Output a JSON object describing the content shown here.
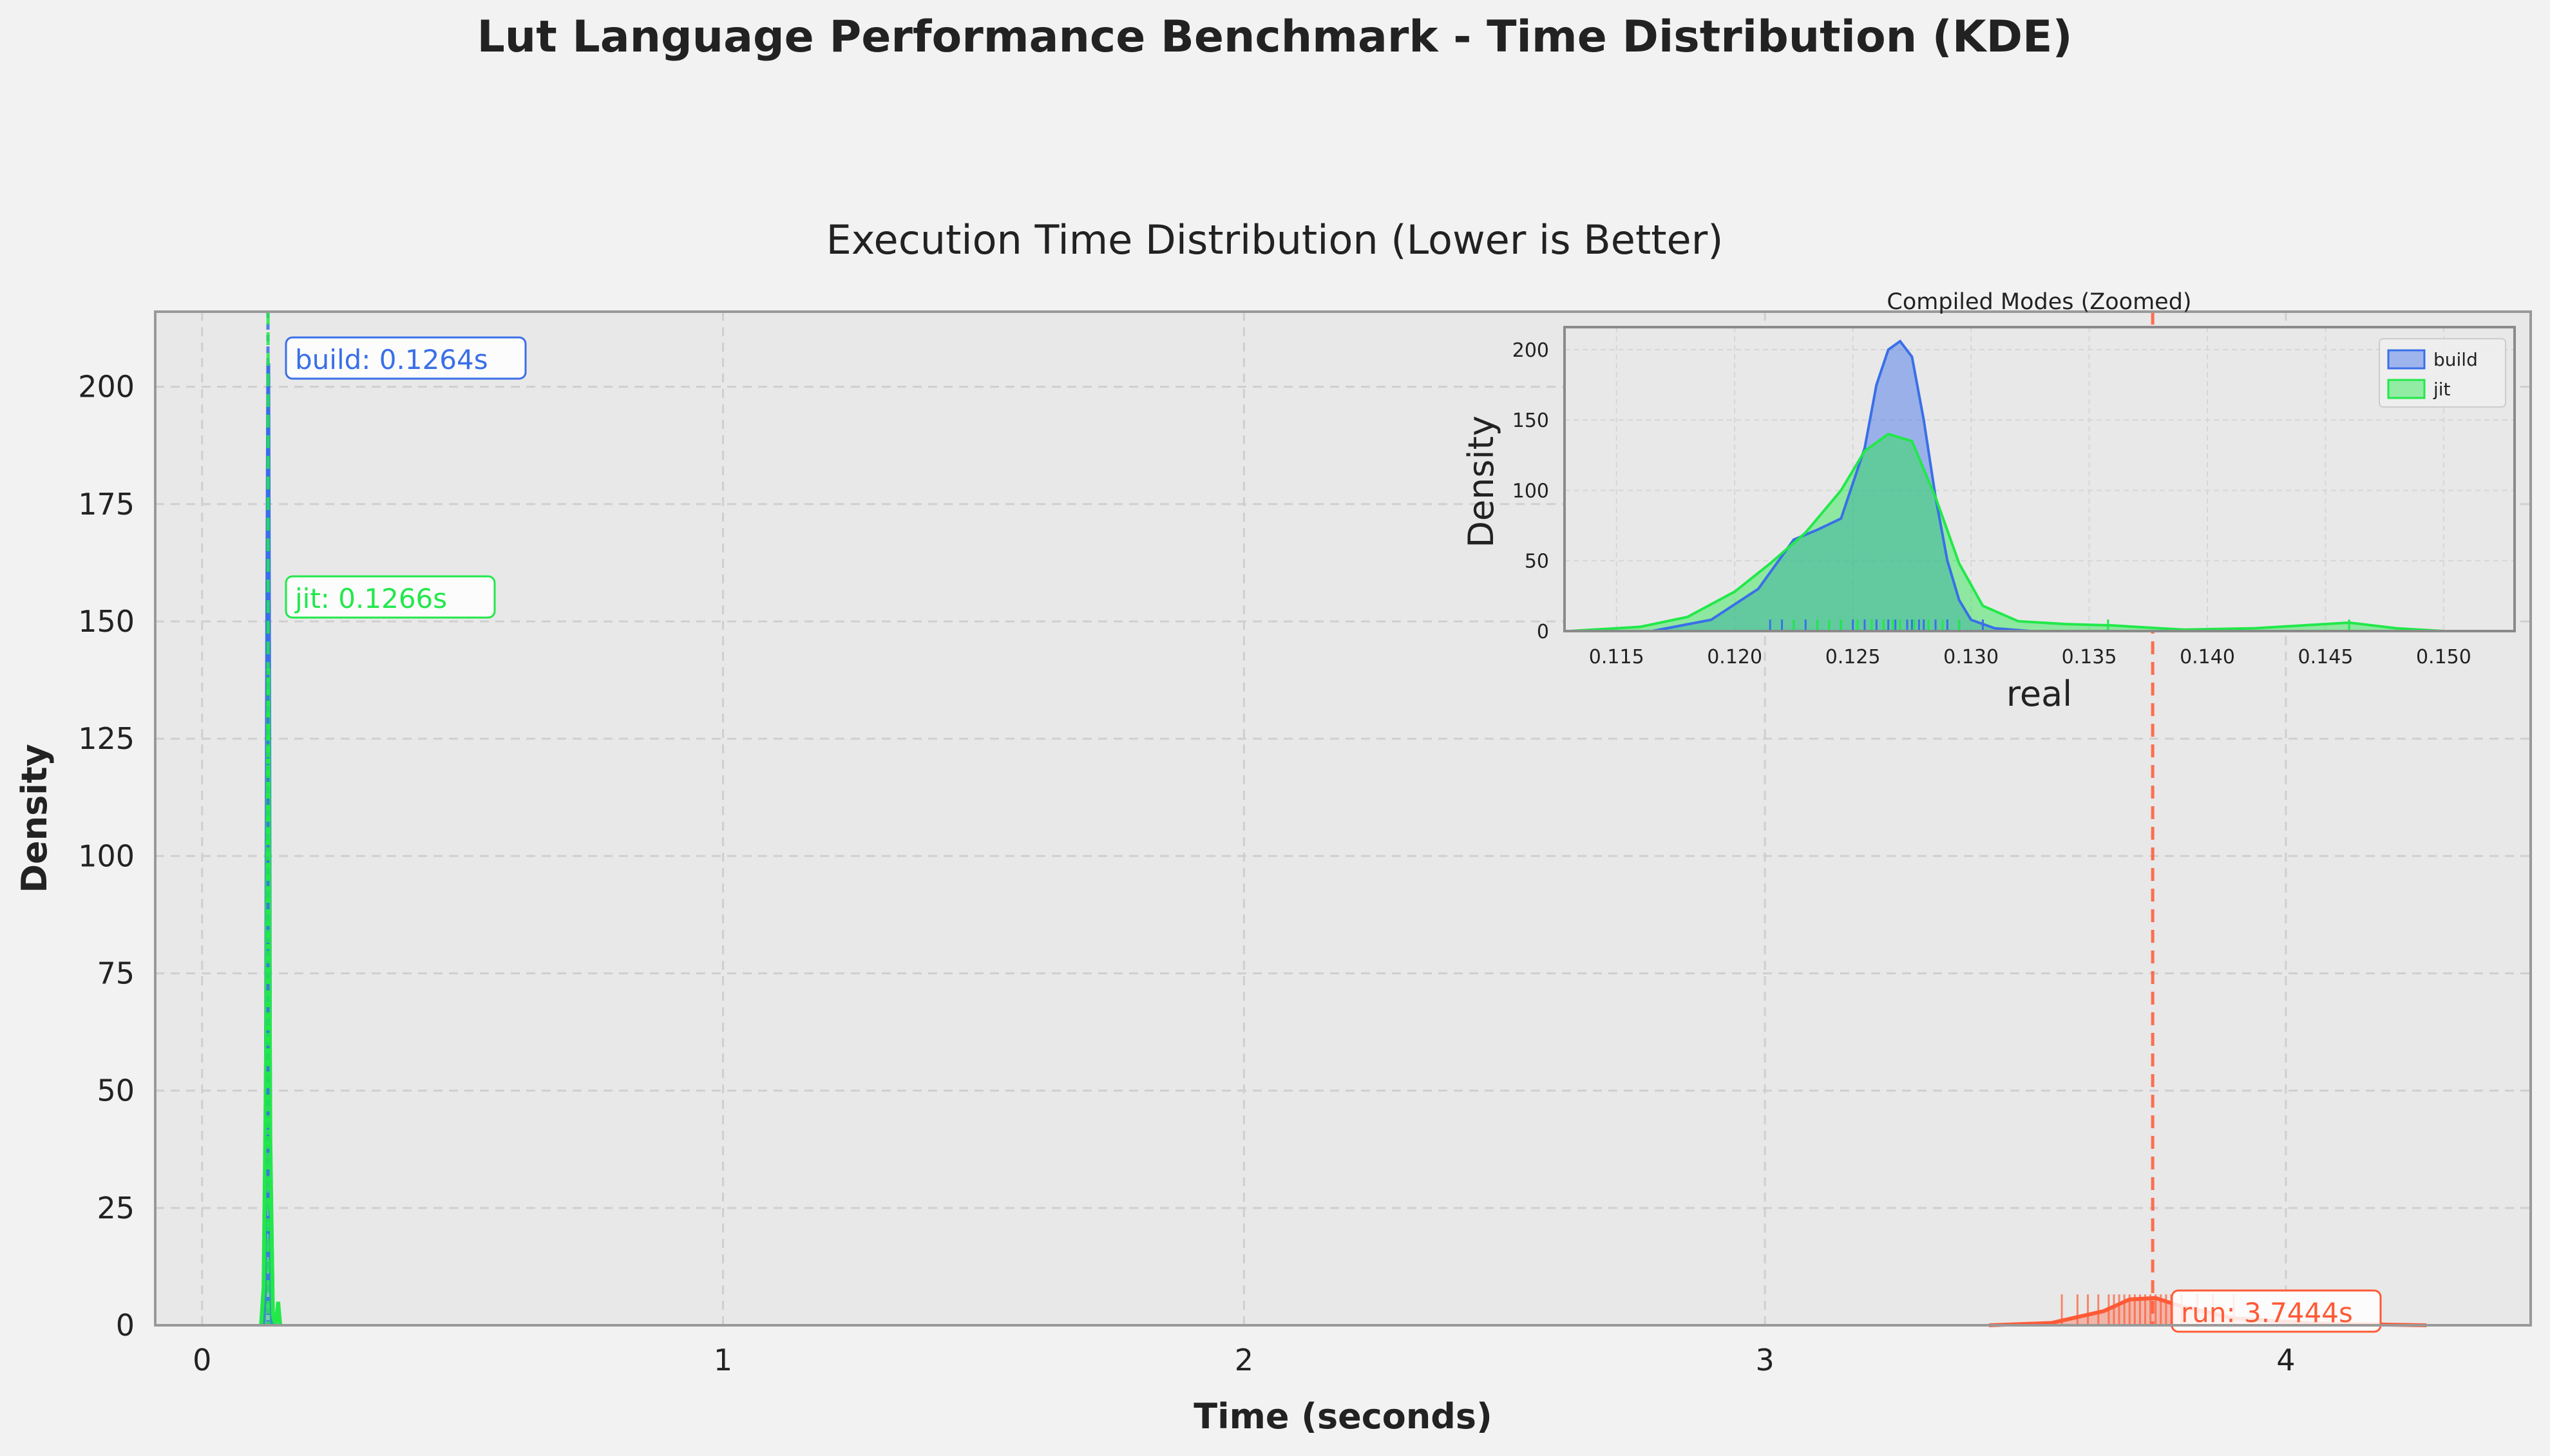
{
  "figure": {
    "suptitle": "Lut Language Performance Benchmark - Time Distribution (KDE)"
  },
  "colors": {
    "build": "#3a6fe8",
    "jit": "#22e84a",
    "run": "#ff5a36",
    "background": "#f2f2f2",
    "plot_bg": "#e8e8e8"
  },
  "chart_data": [
    {
      "type": "area",
      "title": "Execution Time Distribution (Lower is Better)",
      "xlabel": "Time (seconds)",
      "ylabel": "Density",
      "xlim": [
        -0.09,
        4.47
      ],
      "ylim": [
        0,
        216
      ],
      "xticks": [
        0,
        1,
        2,
        3,
        4
      ],
      "yticks": [
        0,
        25,
        50,
        75,
        100,
        125,
        150,
        175,
        200
      ],
      "grid": true,
      "series": [
        {
          "name": "build",
          "mean": 0.1264,
          "annotation": "build: 0.1264s",
          "x": [
            0.118,
            0.121,
            0.123,
            0.125,
            0.127,
            0.129,
            0.131,
            0.134
          ],
          "y": [
            0,
            8,
            70,
            150,
            205,
            120,
            15,
            0
          ]
        },
        {
          "name": "jit",
          "mean": 0.1266,
          "annotation": "jit: 0.1266s",
          "x": [
            0.113,
            0.118,
            0.123,
            0.127,
            0.131,
            0.136,
            0.141,
            0.146,
            0.15
          ],
          "y": [
            0,
            8,
            60,
            140,
            40,
            2,
            0,
            5,
            0
          ]
        },
        {
          "name": "run",
          "mean": 3.7444,
          "annotation": "run: 3.7444s",
          "x": [
            3.43,
            3.55,
            3.65,
            3.7,
            3.75,
            3.8,
            3.9,
            4.05,
            4.27
          ],
          "y": [
            0,
            0.5,
            3,
            5.5,
            5.8,
            4,
            1.5,
            0.4,
            0
          ]
        }
      ],
      "rug": {
        "run": [
          3.57,
          3.6,
          3.62,
          3.64,
          3.66,
          3.67,
          3.68,
          3.69,
          3.7,
          3.71,
          3.72,
          3.73,
          3.74,
          3.75,
          3.76,
          3.77,
          3.78,
          3.8,
          3.83,
          3.86,
          3.9
        ]
      }
    },
    {
      "type": "area",
      "title": "Compiled Modes (Zoomed)",
      "xlabel": "real",
      "ylabel": "Density",
      "xlim": [
        0.1128,
        0.153
      ],
      "ylim": [
        0,
        216
      ],
      "xticks": [
        0.115,
        0.12,
        0.125,
        0.13,
        0.135,
        0.14,
        0.145,
        0.15
      ],
      "xtick_labels": [
        "0.115",
        "0.120",
        "0.125",
        "0.130",
        "0.135",
        "0.140",
        "0.145",
        "0.150"
      ],
      "yticks": [
        0,
        50,
        100,
        150,
        200
      ],
      "legend": "top-right",
      "series": [
        {
          "name": "build",
          "x": [
            0.1165,
            0.119,
            0.121,
            0.1225,
            0.1235,
            0.1245,
            0.1255,
            0.126,
            0.1265,
            0.127,
            0.1275,
            0.128,
            0.1285,
            0.129,
            0.1295,
            0.13,
            0.131,
            0.1325
          ],
          "y": [
            0,
            8,
            30,
            65,
            72,
            80,
            130,
            175,
            200,
            206,
            195,
            150,
            95,
            50,
            22,
            8,
            2,
            0
          ]
        },
        {
          "name": "jit",
          "x": [
            0.113,
            0.116,
            0.118,
            0.12,
            0.1215,
            0.123,
            0.1245,
            0.1255,
            0.1265,
            0.1275,
            0.1285,
            0.1295,
            0.1305,
            0.132,
            0.134,
            0.136,
            0.139,
            0.142,
            0.144,
            0.146,
            0.148,
            0.15
          ],
          "y": [
            0,
            3,
            10,
            28,
            48,
            70,
            100,
            128,
            140,
            135,
            95,
            48,
            18,
            7,
            5,
            4,
            1,
            2,
            4,
            6,
            2,
            0
          ]
        }
      ],
      "rug": {
        "build": [
          0.1215,
          0.122,
          0.1225,
          0.123,
          0.1235,
          0.1245,
          0.125,
          0.1255,
          0.126,
          0.1265,
          0.1268,
          0.127,
          0.1273,
          0.1275,
          0.1278,
          0.128,
          0.1285,
          0.129,
          0.1295,
          0.1305
        ],
        "jit": [
          0.1225,
          0.1235,
          0.124,
          0.1245,
          0.1252,
          0.1258,
          0.1263,
          0.1267,
          0.127,
          0.1276,
          0.1282,
          0.1288,
          0.1295,
          0.1358,
          0.146
        ]
      }
    }
  ]
}
